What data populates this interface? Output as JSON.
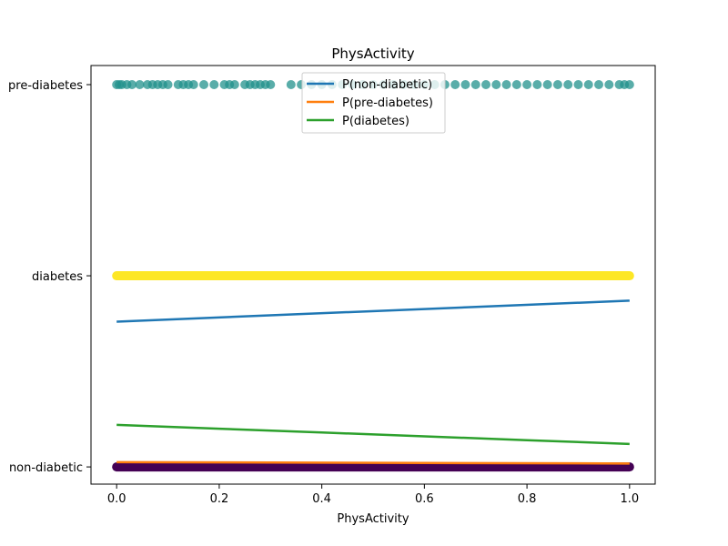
{
  "chart_data": {
    "type": "scatter",
    "title": "PhysActivity",
    "xlabel": "PhysActivity",
    "ylabel": "",
    "xlim": [
      -0.05,
      1.05
    ],
    "ylim": [
      -0.09,
      2.1
    ],
    "xticks": [
      "0.0",
      "0.2",
      "0.4",
      "0.6",
      "0.8",
      "1.0"
    ],
    "xtick_values": [
      0.0,
      0.2,
      0.4,
      0.6,
      0.8,
      1.0
    ],
    "yticks": [
      "non-diabetic",
      "diabetes",
      "pre-diabetes"
    ],
    "ytick_values": [
      0,
      1,
      2
    ],
    "grid": false,
    "legend_position": "top-center",
    "scatter_series": [
      {
        "label": "pre-diabetes",
        "y": 2,
        "color": "#21918c",
        "opacity": 0.75,
        "x": [
          0.0,
          0.005,
          0.01,
          0.02,
          0.03,
          0.045,
          0.06,
          0.07,
          0.08,
          0.09,
          0.1,
          0.12,
          0.13,
          0.14,
          0.15,
          0.17,
          0.19,
          0.21,
          0.22,
          0.23,
          0.25,
          0.26,
          0.27,
          0.28,
          0.29,
          0.3,
          0.34,
          0.36,
          0.38,
          0.4,
          0.42,
          0.44,
          0.46,
          0.48,
          0.5,
          0.52,
          0.54,
          0.56,
          0.58,
          0.6,
          0.62,
          0.64,
          0.66,
          0.68,
          0.7,
          0.72,
          0.74,
          0.76,
          0.78,
          0.8,
          0.82,
          0.84,
          0.86,
          0.88,
          0.9,
          0.92,
          0.94,
          0.96,
          0.98,
          0.99,
          1.0
        ]
      },
      {
        "label": "diabetes",
        "y": 1,
        "color": "#fde725",
        "opacity": 1.0,
        "dense": true,
        "x": [
          0.0,
          1.0
        ]
      },
      {
        "label": "non-diabetic",
        "y": 0,
        "color": "#440154",
        "opacity": 1.0,
        "dense": true,
        "x": [
          0.0,
          1.0
        ]
      }
    ],
    "series": [
      {
        "name": "P(non-diabetic)",
        "color": "#1f77b4",
        "x": [
          0.0,
          1.0
        ],
        "values": [
          0.76,
          0.87
        ]
      },
      {
        "name": "P(pre-diabetes)",
        "color": "#ff7f0e",
        "x": [
          0.0,
          1.0
        ],
        "values": [
          0.025,
          0.018
        ]
      },
      {
        "name": "P(diabetes)",
        "color": "#2ca02c",
        "x": [
          0.0,
          0.2,
          0.4,
          0.6,
          0.8,
          1.0
        ],
        "values": [
          0.22,
          0.2,
          0.18,
          0.16,
          0.14,
          0.12
        ]
      }
    ]
  }
}
